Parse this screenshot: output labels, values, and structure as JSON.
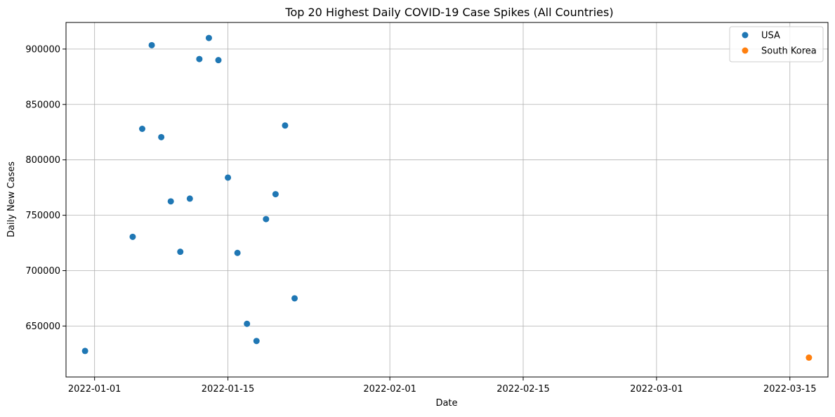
{
  "chart_data": {
    "type": "scatter",
    "title": "Top 20 Highest Daily COVID-19 Case Spikes (All Countries)",
    "xlabel": "Date",
    "ylabel": "Daily New Cases",
    "xlim": [
      "2021-12-29",
      "2022-03-19"
    ],
    "ylim": [
      604000,
      924000
    ],
    "x_ticks": [
      "2022-01-01",
      "2022-01-15",
      "2022-02-01",
      "2022-02-15",
      "2022-03-01",
      "2022-03-15"
    ],
    "y_ticks": [
      650000,
      700000,
      750000,
      800000,
      850000,
      900000
    ],
    "grid": true,
    "legend_position": "upper right",
    "series": [
      {
        "name": "USA",
        "color": "#1f77b4",
        "points": [
          {
            "x": "2021-12-31",
            "y": 627500
          },
          {
            "x": "2022-01-05",
            "y": 730500
          },
          {
            "x": "2022-01-06",
            "y": 828000
          },
          {
            "x": "2022-01-07",
            "y": 903500
          },
          {
            "x": "2022-01-08",
            "y": 820500
          },
          {
            "x": "2022-01-09",
            "y": 762500
          },
          {
            "x": "2022-01-10",
            "y": 717000
          },
          {
            "x": "2022-01-11",
            "y": 765000
          },
          {
            "x": "2022-01-12",
            "y": 891000
          },
          {
            "x": "2022-01-13",
            "y": 910000
          },
          {
            "x": "2022-01-14",
            "y": 890000
          },
          {
            "x": "2022-01-15",
            "y": 784000
          },
          {
            "x": "2022-01-16",
            "y": 716000
          },
          {
            "x": "2022-01-17",
            "y": 652000
          },
          {
            "x": "2022-01-18",
            "y": 636500
          },
          {
            "x": "2022-01-19",
            "y": 746500
          },
          {
            "x": "2022-01-20",
            "y": 769000
          },
          {
            "x": "2022-01-21",
            "y": 831000
          },
          {
            "x": "2022-01-22",
            "y": 675000
          }
        ]
      },
      {
        "name": "South Korea",
        "color": "#ff7f0e",
        "points": [
          {
            "x": "2022-03-17",
            "y": 621500
          }
        ]
      }
    ]
  }
}
